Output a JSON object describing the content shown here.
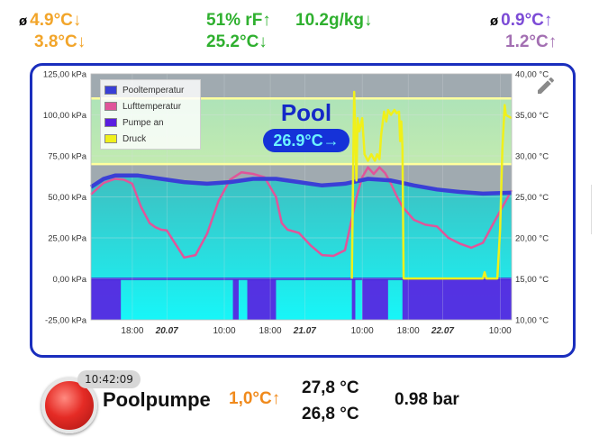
{
  "header": {
    "outdoor": {
      "symbol": "ø",
      "max": "4.9°C↓",
      "min": "3.8°C↓"
    },
    "humidity": {
      "rel": "51% rF↑",
      "abs": "10.2g/kg↓",
      "temp": "25.2°C↓"
    },
    "right": {
      "symbol": "ø",
      "max": "0.9°C↑",
      "min": "1.2°C↑"
    }
  },
  "tile": {
    "title": "Pool",
    "value": "26.9°C→",
    "edit_icon": "pencil-icon"
  },
  "colors": {
    "pool_series": "#3a3fd6",
    "air_series": "#e0559a",
    "pump_series": "#5a1ee0",
    "pressure_series": "#f0f01a",
    "tile_border": "#1a2ebd"
  },
  "chart_data": {
    "type": "line",
    "legend_position": "top-left",
    "grid": true,
    "y_left": {
      "ticks": [
        "125,00 kPa",
        "100,00 kPa",
        "75,00 kPa",
        "50,00 kPa",
        "25,00 kPa",
        "0,00 kPa",
        "-25,00 kPa"
      ],
      "range": [
        -25,
        125
      ],
      "unit": "kPa"
    },
    "y_right": {
      "ticks": [
        "40,00 °C",
        "35,00 °C",
        "30,00 °C",
        "25,00 °C",
        "20,00 °C",
        "15,00 °C",
        "10,00 °C"
      ],
      "range": [
        10,
        40
      ],
      "unit": "°C"
    },
    "x_ticks": [
      {
        "label": "18:00",
        "h": 3,
        "bold": false
      },
      {
        "label": "20.07",
        "h": 9,
        "bold": true
      },
      {
        "label": "10:00",
        "h": 19,
        "bold": false
      },
      {
        "label": "18:00",
        "h": 27,
        "bold": false
      },
      {
        "label": "21.07",
        "h": 33,
        "bold": true
      },
      {
        "label": "10:00",
        "h": 43,
        "bold": false
      },
      {
        "label": "18:00",
        "h": 51,
        "bold": false
      },
      {
        "label": "22.07",
        "h": 57,
        "bold": true
      },
      {
        "label": "10:00",
        "h": 67,
        "bold": false
      }
    ],
    "x_range_hours": [
      -4.2,
      69
    ],
    "bands_kpa": [
      70,
      110
    ],
    "series": [
      {
        "name": "Pooltemperatur",
        "axis": "right",
        "x": [
          -4.2,
          -2,
          0,
          4,
          8,
          12,
          16,
          20,
          24,
          28,
          32,
          36,
          40,
          44,
          48,
          52,
          56,
          60,
          64,
          69
        ],
        "values": [
          26.2,
          27.2,
          27.6,
          27.6,
          27.2,
          26.8,
          26.6,
          26.8,
          27.2,
          27.2,
          26.8,
          26.4,
          26.6,
          27.2,
          27.0,
          26.4,
          25.9,
          25.6,
          25.4,
          25.5
        ]
      },
      {
        "name": "Lufttemperatur",
        "axis": "right",
        "x": [
          -4.2,
          -2,
          0,
          1.5,
          3,
          4.5,
          6,
          7,
          8,
          9,
          10,
          12,
          14,
          16,
          18,
          20,
          22,
          24,
          26,
          28,
          29,
          30,
          32,
          34,
          36,
          38,
          40,
          42,
          43,
          44,
          45,
          46,
          47,
          48,
          49,
          50,
          52,
          54,
          56,
          58,
          60,
          62,
          64,
          66,
          69
        ],
        "values": [
          25.3,
          26.7,
          27.2,
          27.1,
          26.6,
          23.8,
          21.8,
          21.3,
          21.0,
          20.9,
          19.8,
          17.6,
          17.9,
          20.5,
          24.5,
          27.1,
          28.0,
          27.8,
          27.4,
          25.0,
          21.8,
          21.0,
          20.6,
          19.1,
          17.9,
          17.8,
          18.5,
          24.9,
          27.4,
          28.6,
          27.8,
          28.6,
          27.9,
          26.6,
          25.1,
          23.8,
          22.2,
          21.6,
          21.4,
          20.0,
          19.3,
          18.8,
          19.4,
          22.0,
          25.8
        ]
      },
      {
        "name": "Pumpe an",
        "axis": "left",
        "baseline": -25,
        "on_level": 0,
        "on_intervals": [
          [
            -4.2,
            1.0
          ],
          [
            20.5,
            21.5
          ],
          [
            23.0,
            28.0
          ],
          [
            41.2,
            41.8
          ],
          [
            43.0,
            47.5
          ],
          [
            50.0,
            69.0
          ]
        ]
      },
      {
        "name": "Druck",
        "axis": "left",
        "x": [
          41.2,
          41.4,
          41.6,
          42.0,
          42.2,
          42.5,
          43.0,
          43.4,
          44.0,
          44.6,
          45.2,
          45.6,
          46.0,
          46.3,
          46.8,
          47.2,
          47.5,
          48.0,
          48.6,
          49.0,
          49.4,
          49.6,
          49.8,
          50.0,
          50.2,
          56.0,
          64.0,
          64.3,
          64.6,
          65.0,
          66.5,
          67.0,
          67.4,
          67.8,
          68.0,
          69.0
        ],
        "values": [
          0.2,
          60,
          114,
          60,
          98,
          90,
          98,
          76,
          72,
          76,
          72,
          76,
          73,
          88,
          102,
          96,
          103,
          100,
          103,
          101,
          102,
          84,
          96,
          80,
          0.2,
          0.2,
          0.2,
          4,
          0.2,
          0.2,
          0.2,
          30,
          80,
          106,
          100,
          98
        ]
      }
    ]
  },
  "footer": {
    "time": "10:42:09",
    "pump_name": "Poolpumpe",
    "pump_temp": "1,0°C↑",
    "temp1": "27,8 °C",
    "temp2": "26,8 °C",
    "pressure": "0.98 bar"
  }
}
